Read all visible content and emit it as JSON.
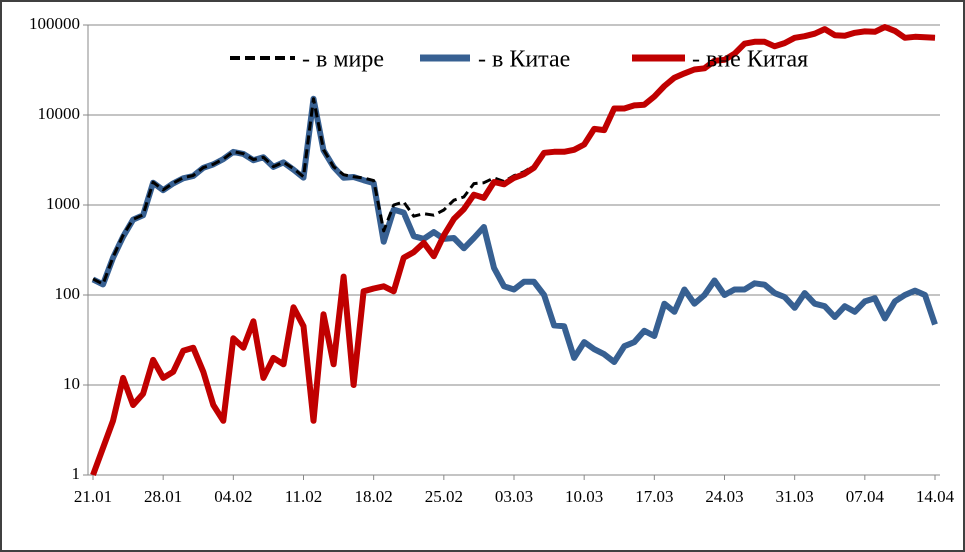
{
  "chart_data": {
    "type": "line",
    "categories": [
      "21.01",
      null,
      null,
      null,
      null,
      null,
      null,
      "28.01",
      null,
      null,
      null,
      null,
      null,
      null,
      "04.02",
      null,
      null,
      null,
      null,
      null,
      null,
      "11.02",
      null,
      null,
      null,
      null,
      null,
      null,
      "18.02",
      null,
      null,
      null,
      null,
      null,
      null,
      "25.02",
      null,
      null,
      null,
      null,
      null,
      null,
      "03.03",
      null,
      null,
      null,
      null,
      null,
      null,
      "10.03",
      null,
      null,
      null,
      null,
      null,
      null,
      "17.03",
      null,
      null,
      null,
      null,
      null,
      null,
      "24.03",
      null,
      null,
      null,
      null,
      null,
      null,
      "31.03",
      null,
      null,
      null,
      null,
      null,
      null,
      "07.04",
      null,
      null,
      null,
      null,
      null,
      null,
      "14.04"
    ],
    "series": [
      {
        "name": "- в мире",
        "color": "#000000",
        "dashed": true,
        "values": [
          151,
          132,
          263,
          462,
          694,
          777,
          1790,
          1471,
          1751,
          2006,
          2128,
          2604,
          2835,
          3239,
          3920,
          3720,
          3194,
          3397,
          2672,
          2990,
          2540,
          2060,
          15156,
          4111,
          2658,
          2169,
          2058,
          1996,
          1867,
          516,
          999,
          1083,
          750,
          800,
          770,
          880,
          1130,
          1230,
          1730,
          1770,
          2000,
          1825,
          2115,
          2340,
          2740,
          3900,
          3946,
          3945,
          4120,
          4730,
          7025,
          6822,
          11818,
          11827,
          12830,
          13040,
          16035,
          21080,
          26065,
          29115,
          32080,
          33100,
          40145,
          41100,
          48115,
          62115,
          65135,
          65130,
          58105,
          63095,
          72072,
          75105,
          80080,
          90075,
          77057,
          76075,
          82065,
          85085,
          84092,
          95055,
          86085,
          72100,
          74112,
          73100,
          72047
        ]
      },
      {
        "name": "-  в Китае",
        "color": "#376092",
        "dashed": false,
        "values": [
          149,
          131,
          259,
          444,
          688,
          769,
          1771,
          1459,
          1737,
          1982,
          2102,
          2590,
          2829,
          3235,
          3887,
          3694,
          3143,
          3385,
          2652,
          2973,
          2467,
          2015,
          15152,
          4050,
          2641,
          2009,
          2048,
          1886,
          1749,
          391,
          889,
          823,
          450,
          420,
          500,
          420,
          430,
          330,
          430,
          570,
          200,
          125,
          115,
          140,
          140,
          100,
          46,
          45,
          20,
          30,
          25,
          22,
          18,
          27,
          30,
          40,
          35,
          80,
          65,
          115,
          80,
          100,
          145,
          100,
          115,
          115,
          135,
          130,
          105,
          95,
          72,
          105,
          80,
          75,
          57,
          75,
          65,
          85,
          92,
          55,
          85,
          100,
          112,
          100,
          47
        ]
      },
      {
        "name": "- вне Китая",
        "color": "#c00000",
        "dashed": false,
        "values": [
          1,
          2,
          4,
          12,
          6,
          8,
          19,
          12,
          14,
          24,
          26,
          14,
          6,
          4,
          33,
          26,
          51,
          12,
          20,
          17,
          73,
          45,
          4,
          61,
          17,
          160,
          10,
          110,
          118,
          125,
          110,
          260,
          300,
          380,
          270,
          460,
          700,
          900,
          1300,
          1200,
          1800,
          1700,
          2000,
          2200,
          2600,
          3800,
          3900,
          3900,
          4100,
          4700,
          7000,
          6800,
          11800,
          11800,
          12800,
          13000,
          16000,
          21000,
          26000,
          29000,
          32000,
          33000,
          40000,
          41000,
          48000,
          62000,
          65000,
          65000,
          58000,
          63000,
          72000,
          75000,
          80000,
          90000,
          77000,
          76000,
          82000,
          85000,
          84000,
          95000,
          86000,
          72000,
          74000,
          73000,
          72000
        ]
      }
    ],
    "ylim": [
      1,
      100000
    ],
    "yticks": [
      1,
      10,
      100,
      1000,
      10000,
      100000
    ],
    "log_scale": true,
    "grid": true,
    "legend": "top"
  }
}
